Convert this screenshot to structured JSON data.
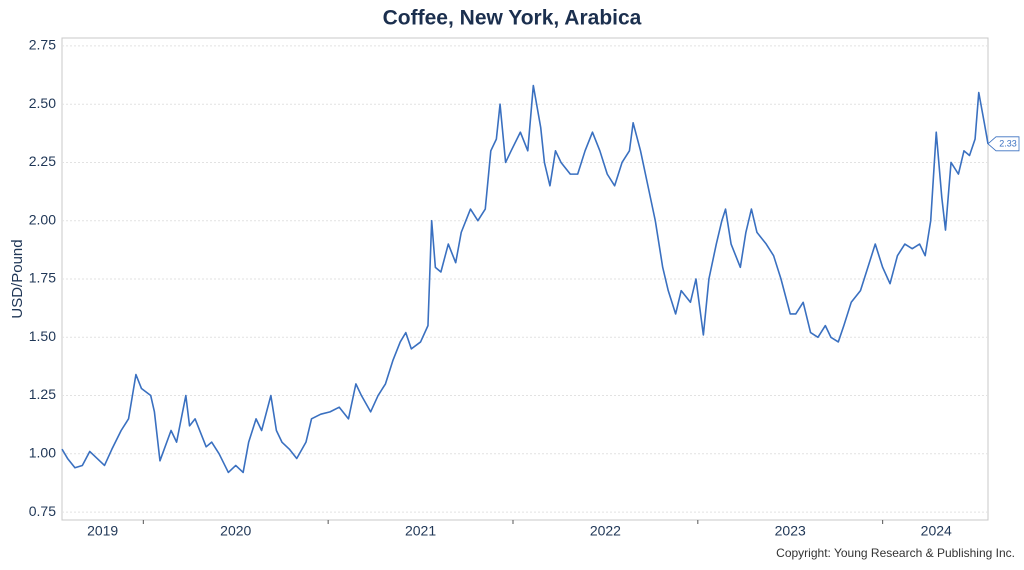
{
  "chart_data": {
    "type": "line",
    "title": "Coffee, New York, Arabica",
    "y_label": "USD/Pound",
    "copyright": "Copyright: Young Research & Publishing Inc.",
    "xlim": [
      2019.56,
      2024.57
    ],
    "xticks": [
      {
        "value": 2019.78,
        "label": "2019"
      },
      {
        "value": 2020.5,
        "label": "2020"
      },
      {
        "value": 2021.5,
        "label": "2021"
      },
      {
        "value": 2022.5,
        "label": "2022"
      },
      {
        "value": 2023.5,
        "label": "2023"
      },
      {
        "value": 2024.29,
        "label": "2024"
      }
    ],
    "xtick_marks": [
      2020,
      2021,
      2022,
      2023,
      2024
    ],
    "ylim": [
      0.716,
      2.784
    ],
    "yticks": [
      0.75,
      {
        "value": 1,
        "label": "1.00"
      },
      1.25,
      {
        "value": 1.5,
        "label": "1.50"
      },
      1.75,
      {
        "value": 2,
        "label": "2.00"
      },
      2.25,
      {
        "value": 2.5,
        "label": "2.50"
      },
      2.75
    ],
    "grid": true,
    "series": [
      {
        "name": "Coffee",
        "color": "#3a70c0",
        "x": [
          2019.56,
          2019.59,
          2019.63,
          2019.67,
          2019.71,
          2019.75,
          2019.79,
          2019.83,
          2019.88,
          2019.92,
          2019.96,
          2019.99,
          2020.04,
          2020.06,
          2020.09,
          2020.15,
          2020.18,
          2020.23,
          2020.25,
          2020.28,
          2020.34,
          2020.37,
          2020.41,
          2020.46,
          2020.5,
          2020.54,
          2020.57,
          2020.61,
          2020.64,
          2020.69,
          2020.72,
          2020.75,
          2020.79,
          2020.83,
          2020.88,
          2020.91,
          2020.96,
          2021.01,
          2021.06,
          2021.11,
          2021.15,
          2021.18,
          2021.23,
          2021.27,
          2021.31,
          2021.35,
          2021.39,
          2021.42,
          2021.45,
          2021.5,
          2021.54,
          2021.56,
          2021.58,
          2021.61,
          2021.65,
          2021.69,
          2021.72,
          2021.77,
          2021.81,
          2021.85,
          2021.88,
          2021.91,
          2021.93,
          2021.96,
          2021.99,
          2022.04,
          2022.08,
          2022.11,
          2022.15,
          2022.17,
          2022.2,
          2022.23,
          2022.26,
          2022.31,
          2022.35,
          2022.39,
          2022.43,
          2022.47,
          2022.51,
          2022.55,
          2022.59,
          2022.63,
          2022.65,
          2022.69,
          2022.73,
          2022.77,
          2022.81,
          2022.84,
          2022.88,
          2022.91,
          2022.96,
          2022.99,
          2023.03,
          2023.06,
          2023.1,
          2023.13,
          2023.15,
          2023.18,
          2023.23,
          2023.26,
          2023.29,
          2023.32,
          2023.37,
          2023.41,
          2023.45,
          2023.5,
          2023.53,
          2023.57,
          2023.61,
          2023.65,
          2023.69,
          2023.72,
          2023.76,
          2023.79,
          2023.83,
          2023.88,
          2023.92,
          2023.96,
          2024.0,
          2024.04,
          2024.08,
          2024.12,
          2024.16,
          2024.2,
          2024.23,
          2024.26,
          2024.29,
          2024.32,
          2024.34,
          2024.37,
          2024.41,
          2024.44,
          2024.47,
          2024.5,
          2024.52,
          2024.55,
          2024.57
        ],
        "values": [
          1.02,
          0.98,
          0.94,
          0.95,
          1.01,
          0.98,
          0.95,
          1.02,
          1.1,
          1.15,
          1.34,
          1.28,
          1.25,
          1.18,
          0.97,
          1.1,
          1.05,
          1.25,
          1.12,
          1.15,
          1.03,
          1.05,
          1.0,
          0.92,
          0.95,
          0.92,
          1.05,
          1.15,
          1.1,
          1.25,
          1.1,
          1.05,
          1.02,
          0.98,
          1.05,
          1.15,
          1.17,
          1.18,
          1.2,
          1.15,
          1.3,
          1.25,
          1.18,
          1.25,
          1.3,
          1.4,
          1.48,
          1.52,
          1.45,
          1.48,
          1.55,
          2.0,
          1.8,
          1.78,
          1.9,
          1.82,
          1.95,
          2.05,
          2.0,
          2.05,
          2.3,
          2.35,
          2.5,
          2.25,
          2.3,
          2.38,
          2.3,
          2.58,
          2.4,
          2.25,
          2.15,
          2.3,
          2.25,
          2.2,
          2.2,
          2.3,
          2.38,
          2.3,
          2.2,
          2.15,
          2.25,
          2.3,
          2.42,
          2.3,
          2.15,
          2.0,
          1.8,
          1.7,
          1.6,
          1.7,
          1.65,
          1.75,
          1.51,
          1.75,
          1.9,
          2.0,
          2.05,
          1.9,
          1.8,
          1.95,
          2.05,
          1.95,
          1.9,
          1.85,
          1.75,
          1.6,
          1.6,
          1.65,
          1.52,
          1.5,
          1.55,
          1.5,
          1.48,
          1.55,
          1.65,
          1.7,
          1.8,
          1.9,
          1.8,
          1.73,
          1.85,
          1.9,
          1.88,
          1.9,
          1.85,
          2.0,
          2.38,
          2.1,
          1.96,
          2.25,
          2.2,
          2.3,
          2.28,
          2.35,
          2.55,
          2.42,
          2.33
        ]
      }
    ],
    "last_value_label": "2.33"
  }
}
